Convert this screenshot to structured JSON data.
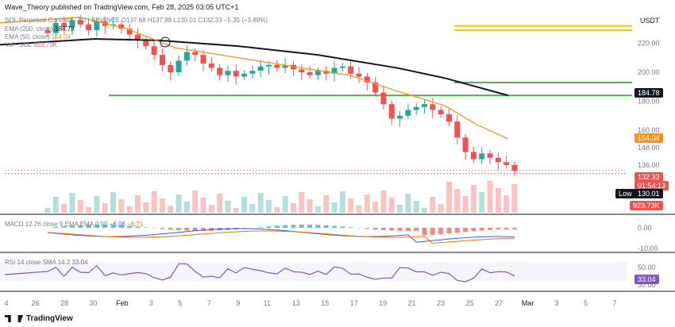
{
  "header": {
    "published": "Wave_Theory published on TradingView.com, Feb 28, 2025 03:05 UTC+1",
    "ohlc_line": "SOL Perpetual Contract · 1D · BINANCE  O137.68 H137.98 L130.01 C132.33 −5.35 (−3.89%)",
    "ema200": "EMA (200, close)",
    "ema200_value": "184.78",
    "ema50": "EMA (50, close)",
    "ema50_value": "154.04",
    "volume": "Vol · SOL",
    "volume_value": "923.73K",
    "currency": "USDT"
  },
  "price_tags": {
    "ema200": "184.78",
    "ema50": "154.04",
    "last": "132.33",
    "countdown": "01:54:13",
    "low_label": "Low",
    "low": "130.01",
    "volume": "923.73K"
  },
  "macd_legend": {
    "label": "MACD 12 26 close 9 EMA EMA",
    "v1": "0.00",
    "v2": "−6.06",
    "v3": "−6.71"
  },
  "rsi_legend": {
    "label": "RSI 14 close SMA 14 2",
    "value": "33.04"
  },
  "rsi_tag": "33.04",
  "footer": {
    "brand": "TradingView"
  },
  "colors": {
    "up": "#26a69a",
    "down": "#ef5350",
    "ema50": "#f7931a",
    "ema200": "#131722",
    "support": "#4caf50",
    "target": "#f5c400",
    "rsi": "#7e57c2",
    "macd": "#2962ff",
    "signal": "#ff6d00"
  },
  "chart_data": {
    "type": "candlestick",
    "price_axis": {
      "ticks": [
        220.0,
        200.0,
        180.0,
        160.0,
        148.0,
        136.0
      ],
      "range": [
        125,
        240
      ]
    },
    "date_axis": [
      "4",
      "26",
      "28",
      "30",
      "Feb",
      "3",
      "5",
      "7",
      "9",
      "11",
      "13",
      "15",
      "17",
      "19",
      "21",
      "23",
      "25",
      "27",
      "Mar",
      "3",
      "5",
      "7"
    ],
    "levels": {
      "yellow": [
        232,
        229
      ],
      "green_upper": 193,
      "green_main": 184
    },
    "ema200": [
      [
        0,
        219
      ],
      [
        120,
        223
      ],
      [
        200,
        222
      ],
      [
        300,
        218
      ],
      [
        400,
        212
      ],
      [
        500,
        203
      ],
      [
        560,
        196
      ],
      [
        600,
        190
      ],
      [
        640,
        184
      ]
    ],
    "ema50": [
      [
        0,
        234
      ],
      [
        100,
        238
      ],
      [
        160,
        230
      ],
      [
        220,
        217
      ],
      [
        300,
        210
      ],
      [
        380,
        203
      ],
      [
        440,
        198
      ],
      [
        500,
        187
      ],
      [
        560,
        177
      ],
      [
        600,
        164
      ],
      [
        640,
        154
      ]
    ],
    "closes": [
      227,
      234,
      231,
      236,
      233,
      229,
      235,
      232,
      233,
      230,
      226,
      222,
      218,
      212,
      205,
      200,
      208,
      214,
      212,
      206,
      203,
      198,
      201,
      197,
      199,
      201,
      204,
      205,
      203,
      205,
      202,
      200,
      198,
      201,
      199,
      203,
      204,
      199,
      197,
      193,
      186,
      178,
      168,
      170,
      174,
      176,
      178,
      174,
      171,
      166,
      155,
      145,
      140,
      144,
      141,
      138,
      136,
      132
    ],
    "rsi_axis": [
      50.0,
      30.0
    ],
    "rsi_last": 33.04,
    "macd_axis": [
      0.0,
      -10.0
    ]
  }
}
